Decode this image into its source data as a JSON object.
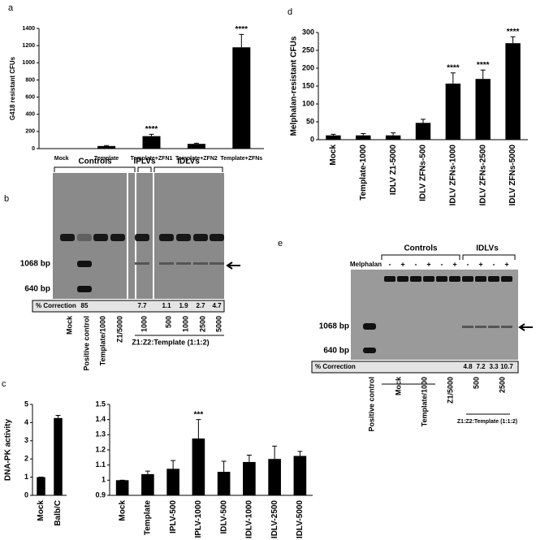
{
  "chart_data": [
    {
      "type": "bar",
      "panel": "a",
      "y_label": "G418 resistant CFUs",
      "categories": [
        "Mock",
        "Template",
        "Template+ZFN1",
        "Template+ZFN2",
        "Template+ZFNs"
      ],
      "values": [
        0,
        30,
        145,
        55,
        1180
      ],
      "errors": [
        0,
        6,
        22,
        8,
        150
      ],
      "significance": [
        null,
        null,
        "****",
        null,
        "****"
      ],
      "ylim": [
        0,
        1400
      ],
      "yticks": [
        0,
        200,
        400,
        600,
        800,
        1000,
        1200,
        1400
      ],
      "color": "#000000"
    },
    {
      "type": "bar",
      "panel": "d",
      "y_label": "Melphalan-resistant CFUs",
      "categories": [
        "Mock",
        "Template-1000",
        "IDLV Z1-5000",
        "IDLV ZFNs-500",
        "IDLV ZFNs-1000",
        "IDLV ZFNs-2500",
        "IDLV ZFNs-5000"
      ],
      "values": [
        12,
        12,
        12,
        47,
        157,
        170,
        270
      ],
      "errors": [
        3,
        5,
        7,
        10,
        30,
        25,
        18
      ],
      "significance": [
        null,
        null,
        null,
        null,
        "****",
        "****",
        "****"
      ],
      "ylim": [
        0,
        300
      ],
      "yticks": [
        0,
        50,
        100,
        150,
        200,
        250,
        300
      ],
      "color": "#000000"
    },
    {
      "type": "bar",
      "panel": "c",
      "y_label": "DNA-PK activity",
      "categories": [
        "Mock",
        "Balb/C"
      ],
      "values": [
        1,
        4.25
      ],
      "errors": [
        0,
        0.15
      ],
      "ylim": [
        0,
        5
      ],
      "yticks": [
        0,
        1,
        2,
        3,
        4,
        5
      ],
      "color": "#000000"
    },
    {
      "type": "bar",
      "categories": [
        "Mock",
        "Template",
        "IPLV-500",
        "IPLV-1000",
        "IDLV-500",
        "IDLV-1000",
        "IDLV-2500",
        "IDLV-5000"
      ],
      "values": [
        1,
        1.04,
        1.075,
        1.275,
        1.055,
        1.12,
        1.14,
        1.16
      ],
      "errors": [
        0,
        0.02,
        0.055,
        0.125,
        0.07,
        0.045,
        0.085,
        0.03
      ],
      "significance": [
        null,
        null,
        null,
        "***",
        null,
        null,
        null,
        null
      ],
      "ylim": [
        0.9,
        1.5
      ],
      "yticks": [
        0.9,
        1,
        1.1,
        1.2,
        1.3,
        1.4,
        1.5
      ],
      "color": "#000000"
    }
  ],
  "gel_b": {
    "panel": "b",
    "groups": [
      "Controls",
      "IPLVs",
      "IDLVs"
    ],
    "markers": [
      "1068 bp",
      "640 bp"
    ],
    "correction_label": "% Correction",
    "correction": [
      null,
      85,
      null,
      null,
      7.7,
      1.1,
      1.9,
      2.7,
      4.7
    ],
    "lanes": [
      "Mock",
      "Positive control",
      "Template/1000",
      "Z1/5000",
      "1000",
      "500",
      "1000",
      "2500",
      "5000"
    ],
    "ratio_label": "Z1:Z2:Template (1:1:2)"
  },
  "gel_e": {
    "panel": "e",
    "groups": [
      "Controls",
      "IDLVs"
    ],
    "treatment_label": "Melphalan",
    "treatment": [
      null,
      "-",
      "+",
      "-",
      "+",
      "-",
      "+",
      "-",
      "+",
      "-",
      "+"
    ],
    "markers": [
      "1068 bp",
      "640 bp"
    ],
    "correction_label": "% Correction",
    "correction": [
      null,
      null,
      null,
      null,
      null,
      null,
      null,
      4.8,
      7.2,
      3.3,
      10.7
    ],
    "lanes": [
      "Positive control",
      "Mock",
      "Template/1000",
      "Z1/5000",
      "500",
      "2500"
    ],
    "ratio_label": "Z1:Z2:Template (1:1:2)"
  }
}
